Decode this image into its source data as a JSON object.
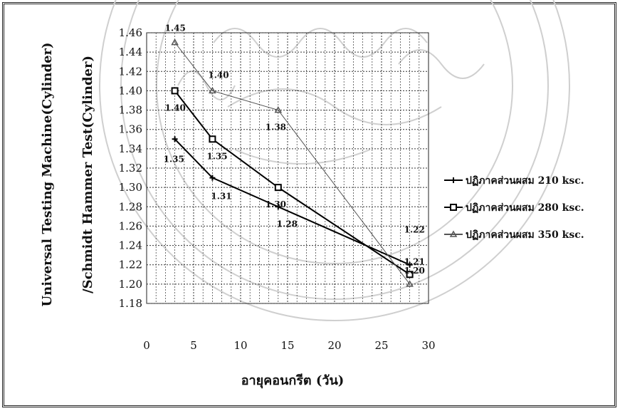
{
  "chart_data": {
    "type": "line",
    "xlabel": "อายุคอนกรีต (วัน)",
    "ylabel_line1": "Universal Testing Machine(Cylinder)",
    "ylabel_line2": "/Schmidt Hammer Test(Cylinder)",
    "xlim": [
      0,
      30
    ],
    "ylim": [
      1.18,
      1.46
    ],
    "x_ticks": [
      "0",
      "5",
      "10",
      "15",
      "20",
      "25",
      "30"
    ],
    "y_ticks": [
      "1.18",
      "1.20",
      "1.22",
      "1.24",
      "1.26",
      "1.28",
      "1.30",
      "1.32",
      "1.34",
      "1.36",
      "1.38",
      "1.40",
      "1.42",
      "1.44",
      "1.46"
    ],
    "grid": true,
    "legend_position": "right",
    "series": [
      {
        "name": "ปฏิภาคส่วนผสม 210 ksc.",
        "marker": "plus",
        "color": "#000000",
        "x": [
          3,
          7,
          14,
          28
        ],
        "y": [
          1.35,
          1.31,
          1.28,
          1.22
        ],
        "labels": [
          "1.35",
          "1.31",
          "1.28",
          "1.22"
        ]
      },
      {
        "name": "ปฏิภาคส่วนผสม 280 ksc.",
        "marker": "square",
        "color": "#000000",
        "x": [
          3,
          7,
          14,
          28
        ],
        "y": [
          1.4,
          1.35,
          1.3,
          1.21
        ],
        "labels": [
          "1.40",
          "1.35",
          "1.30",
          "1.21"
        ]
      },
      {
        "name": "ปฏิภาคส่วนผสม 350 ksc.",
        "marker": "triangle",
        "color": "#555555",
        "x": [
          3,
          7,
          14,
          28
        ],
        "y": [
          1.45,
          1.4,
          1.38,
          1.2
        ],
        "labels": [
          "1.45",
          "1.40",
          "1.38",
          "1.20"
        ]
      }
    ]
  }
}
